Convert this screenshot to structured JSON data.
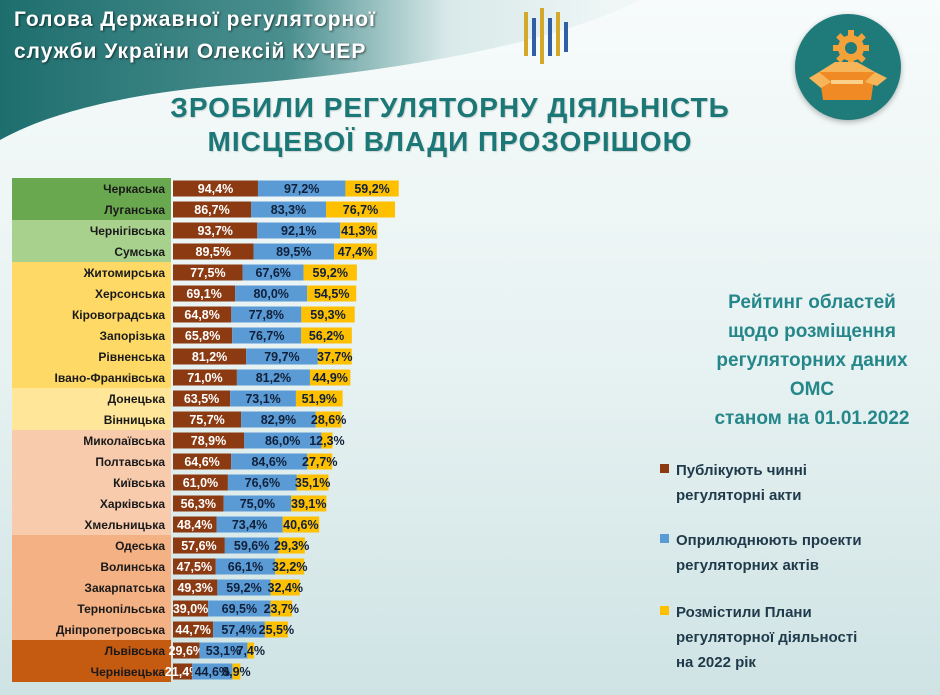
{
  "header": {
    "line1": "Голова Державної регуляторної",
    "line2": "служби України Олексій КУЧЕР"
  },
  "title": {
    "line1": "ЗРОБИЛИ РЕГУЛЯТОРНУ ДІЯЛЬНІСТЬ",
    "line2": "МІСЦЕВОЇ ВЛАДИ ПРОЗОРІШОЮ"
  },
  "side_title": {
    "line1": "Рейтинг областей",
    "line2": "щодо розміщення",
    "line3": "регуляторних даних",
    "line4": "ОМС",
    "line5": "станом на 01.01.2022"
  },
  "legend": [
    {
      "line1": "Публікують чинні",
      "line2": "регуляторні акти",
      "color": "#8b3a12"
    },
    {
      "line1": "Оприлюднюють проекти",
      "line2": "регуляторних актів",
      "color": "#5b9bd5"
    },
    {
      "line1": "Розмістили Плани",
      "line2": "регуляторної діяльності",
      "line3": "на 2022 рік",
      "color": "#ffc000"
    }
  ],
  "icons": {
    "header_logo": "ministry-trident-logo-icon",
    "badge": "gear-box-icon"
  },
  "colors": {
    "teal": "#1c7777",
    "series1": "#8b3a12",
    "series2": "#5b9bd5",
    "series3": "#ffc000"
  },
  "chart_data": {
    "type": "bar",
    "orientation": "horizontal",
    "stacked": true,
    "categories": [
      "Черкаська",
      "Луганська",
      "Чернігівська",
      "Сумська",
      "Житомирська",
      "Херсонська",
      "Кіровоградська",
      "Запорізька",
      "Рівненська",
      "Івано-Франківська",
      "Донецька",
      "Вінницька",
      "Миколаївська",
      "Полтавська",
      "Київська",
      "Харківська",
      "Хмельницька",
      "Одеська",
      "Волинська",
      "Закарпатська",
      "Тернопільська",
      "Дніпропетровська",
      "Львівська",
      "Чернівецька"
    ],
    "category_colors": [
      "#6aa84f",
      "#6aa84f",
      "#a9d18e",
      "#a9d18e",
      "#ffd966",
      "#ffd966",
      "#ffd966",
      "#ffd966",
      "#ffd966",
      "#ffd966",
      "#ffe699",
      "#ffe699",
      "#f8cbad",
      "#f8cbad",
      "#f8cbad",
      "#f8cbad",
      "#f8cbad",
      "#f4b183",
      "#f4b183",
      "#f4b183",
      "#f4b183",
      "#f4b183",
      "#c55a11",
      "#c55a11"
    ],
    "series": [
      {
        "name": "Публікують чинні регуляторні акти",
        "color": "#8b3a12",
        "values": [
          94.4,
          86.7,
          93.7,
          89.5,
          77.5,
          69.1,
          64.8,
          65.8,
          81.2,
          71.0,
          63.5,
          75.7,
          78.9,
          64.6,
          61.0,
          56.3,
          48.4,
          57.6,
          47.5,
          49.3,
          39.0,
          44.7,
          29.6,
          21.4
        ],
        "labels": [
          "94,4%",
          "86,7%",
          "93,7%",
          "89,5%",
          "77,5%",
          "69,1%",
          "64,8%",
          "65,8%",
          "81,2%",
          "71,0%",
          "63,5%",
          "75,7%",
          "78,9%",
          "64,6%",
          "61,0%",
          "56,3%",
          "48,4%",
          "57,6%",
          "47,5%",
          "49,3%",
          "39,0%",
          "44,7%",
          "29,6%",
          "21,4%"
        ]
      },
      {
        "name": "Оприлюднюють проекти регуляторних актів",
        "color": "#5b9bd5",
        "values": [
          97.2,
          83.3,
          92.1,
          89.5,
          67.6,
          80.0,
          77.8,
          76.7,
          79.7,
          81.2,
          73.1,
          82.9,
          86.0,
          84.6,
          76.6,
          75.0,
          73.4,
          59.6,
          66.1,
          59.2,
          69.5,
          57.4,
          53.1,
          44.6
        ],
        "labels": [
          "97,2%",
          "83,3%",
          "92,1%",
          "89,5%",
          "67,6%",
          "80,0%",
          "77,8%",
          "76,7%",
          "79,7%",
          "81,2%",
          "73,1%",
          "82,9%",
          "86,0%",
          "84,6%",
          "76,6%",
          "75,0%",
          "73,4%",
          "59,6%",
          "66,1%",
          "59,2%",
          "69,5%",
          "57,4%",
          "53,1%",
          "44,6%"
        ]
      },
      {
        "name": "Розмістили Плани регуляторної діяльності на 2022 рік",
        "color": "#ffc000",
        "values": [
          59.2,
          76.7,
          41.3,
          47.4,
          59.2,
          54.5,
          59.3,
          56.2,
          37.7,
          44.9,
          51.9,
          28.6,
          12.3,
          27.7,
          35.1,
          39.1,
          40.6,
          29.3,
          32.2,
          32.4,
          23.7,
          25.5,
          7.4,
          8.9
        ],
        "labels": [
          "59,2%",
          "76,7%",
          "41,3%",
          "47,4%",
          "59,2%",
          "54,5%",
          "59,3%",
          "56,2%",
          "37,7%",
          "44,9%",
          "51,9%",
          "28,6%",
          "12,3%",
          "27,7%",
          "35,1%",
          "39,1%",
          "40,6%",
          "29,3%",
          "32,2%",
          "32,4%",
          "23,7%",
          "25,5%",
          "7,4%",
          "8,9%"
        ]
      }
    ]
  }
}
